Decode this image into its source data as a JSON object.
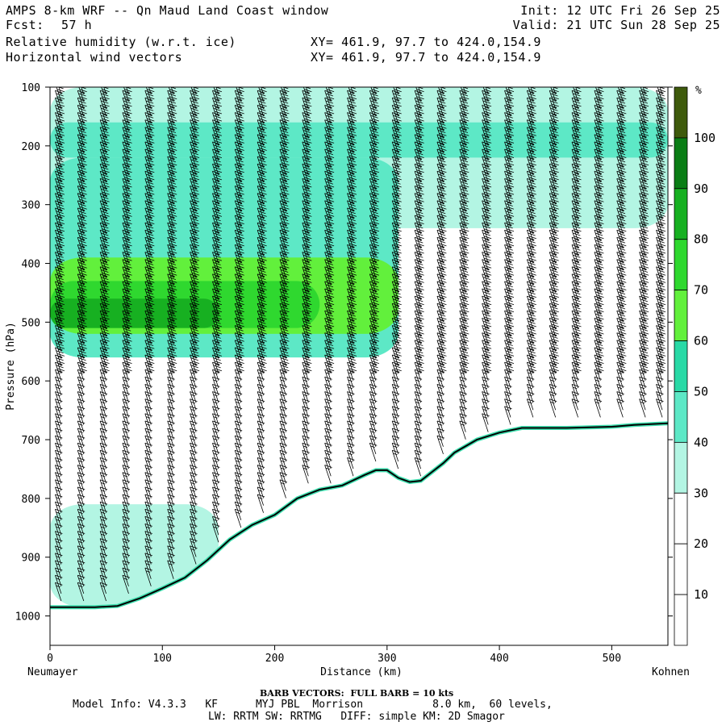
{
  "header": {
    "title": "AMPS 8-km WRF -- Qn Maud Land Coast window",
    "fcst_label": "Fcst:",
    "fcst_value": "57 h",
    "init": "Init: 12 UTC Fri 26 Sep 25",
    "valid": "Valid: 21 UTC Sun 28 Sep 25",
    "field1": "Relative humidity (w.r.t. ice)",
    "field1_xy": "XY= 461.9, 97.7 to 424.0,154.9",
    "field2": "Horizontal wind vectors",
    "field2_xy": "XY= 461.9, 97.7 to 424.0,154.9"
  },
  "footer": {
    "barb_note": "BARB VECTORS:  FULL BARB = 10 kts",
    "model_line1": "Model Info: V4.3.3   KF      MYJ PBL  Morrison           8.0 km,  60 levels,",
    "model_line2": "LW: RRTM SW: RRTMG   DIFF: simple KM: 2D Smagor"
  },
  "chart_data": {
    "type": "heatmap",
    "title": "Relative humidity (w.r.t. ice) cross-section with horizontal wind barbs",
    "xlabel": "Distance (km)",
    "ylabel": "Pressure (hPa)",
    "xlim": [
      0,
      550
    ],
    "ylim": [
      1050,
      100
    ],
    "x_ticks": [
      0,
      100,
      200,
      300,
      400,
      500
    ],
    "y_ticks": [
      100,
      200,
      300,
      400,
      500,
      600,
      700,
      800,
      900,
      1000
    ],
    "x_end_labels": {
      "left": "Neumayer",
      "right": "Kohnen"
    },
    "colorbar": {
      "unit": "%",
      "levels": [
        10,
        20,
        30,
        40,
        50,
        60,
        70,
        80,
        90,
        100
      ],
      "colors": [
        "#ffffff",
        "#ffffff",
        "#ffffff",
        "#b3f5e3",
        "#5de8c6",
        "#29d9a6",
        "#62f03c",
        "#2fd82f",
        "#17b021",
        "#0a7d15",
        "#3e5a0c"
      ]
    },
    "terrain": {
      "distance_km": [
        0,
        20,
        40,
        60,
        80,
        100,
        120,
        140,
        160,
        180,
        200,
        220,
        240,
        260,
        280,
        290,
        300,
        310,
        320,
        330,
        340,
        350,
        360,
        380,
        400,
        420,
        440,
        460,
        480,
        500,
        520,
        550
      ],
      "surface_pressure_hPa": [
        985,
        985,
        985,
        983,
        970,
        953,
        935,
        905,
        870,
        845,
        828,
        800,
        785,
        778,
        760,
        752,
        752,
        765,
        772,
        770,
        755,
        740,
        722,
        700,
        688,
        680,
        680,
        680,
        679,
        678,
        675,
        672
      ]
    },
    "rh_regions": [
      {
        "level": "30-40",
        "distance_km": [
          0,
          550
        ],
        "pressure_hPa": [
          100,
          340
        ],
        "note": "broad moist layer aloft thinning eastward"
      },
      {
        "level": "40-50",
        "distance_km": [
          0,
          550
        ],
        "pressure_hPa": [
          160,
          220
        ],
        "note": "band near 200 hPa across section"
      },
      {
        "level": "40-50",
        "distance_km": [
          0,
          310
        ],
        "pressure_hPa": [
          220,
          560
        ]
      },
      {
        "level": "60-70",
        "distance_km": [
          0,
          310
        ],
        "pressure_hPa": [
          390,
          520
        ]
      },
      {
        "level": "70-80",
        "distance_km": [
          0,
          240
        ],
        "pressure_hPa": [
          430,
          510
        ]
      },
      {
        "level": "80-90",
        "distance_km": [
          0,
          150
        ],
        "pressure_hPa": [
          460,
          510
        ]
      },
      {
        "level": "30-40",
        "distance_km": [
          0,
          150
        ],
        "pressure_hPa": [
          810,
          985
        ],
        "note": "low-level moist patch near Neumayer"
      }
    ],
    "wind_barbs": {
      "columns_km": [
        10,
        30,
        50,
        70,
        90,
        110,
        130,
        150,
        170,
        190,
        210,
        230,
        250,
        270,
        290,
        310,
        330,
        350,
        370,
        390,
        410,
        430,
        450,
        470,
        490,
        510,
        530,
        545
      ],
      "levels_hPa_step": 12.5,
      "speed_kts_upper": 35,
      "speed_kts_lower": 15
    }
  }
}
